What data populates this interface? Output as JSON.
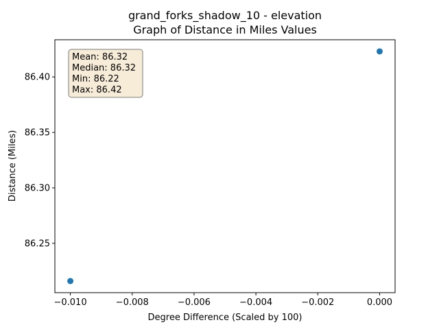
{
  "chart_data": {
    "type": "scatter",
    "title_line1": "grand_forks_shadow_10 - elevation",
    "title_line2": "Graph of Distance in Miles Values",
    "xlabel": "Degree Difference (Scaled by 100)",
    "ylabel": "Distance (Miles)",
    "xlim": [
      -0.0105,
      0.0005
    ],
    "ylim": [
      86.2055,
      86.4335
    ],
    "xticks": [
      {
        "value": -0.01,
        "label": "−0.010"
      },
      {
        "value": -0.008,
        "label": "−0.008"
      },
      {
        "value": -0.006,
        "label": "−0.006"
      },
      {
        "value": -0.004,
        "label": "−0.004"
      },
      {
        "value": -0.002,
        "label": "−0.002"
      },
      {
        "value": 0.0,
        "label": "0.000"
      }
    ],
    "yticks": [
      {
        "value": 86.25,
        "label": "86.25"
      },
      {
        "value": 86.3,
        "label": "86.30"
      },
      {
        "value": 86.35,
        "label": "86.35"
      },
      {
        "value": 86.4,
        "label": "86.40"
      }
    ],
    "points": [
      {
        "x": -0.01,
        "y": 86.216
      },
      {
        "x": 0.0,
        "y": 86.423
      }
    ],
    "point_color": "#1f77b4",
    "grid": false,
    "stats_box": {
      "lines": [
        "Mean: 86.32",
        "Median: 86.32",
        "Min: 86.22",
        "Max: 86.42"
      ],
      "placement": "top-left",
      "background": "#f7ecd8",
      "border": "#7a7a7a"
    }
  }
}
